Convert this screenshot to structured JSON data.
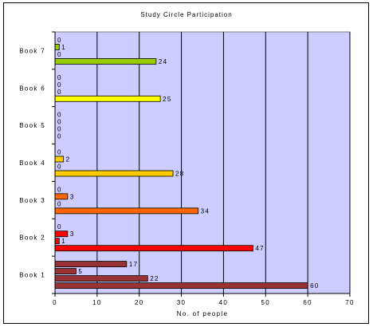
{
  "chart_data": {
    "type": "bar",
    "orientation": "horizontal",
    "title": "Study Circle Participation",
    "xlabel": "No. of people",
    "ylabel": "",
    "xlim": [
      0,
      70
    ],
    "xticks": [
      0,
      10,
      20,
      30,
      40,
      50,
      60,
      70
    ],
    "grid": "vertical",
    "legend": "none",
    "plot_background": "#ccccff",
    "categories": [
      "Book 7",
      "Book 6",
      "Book 5",
      "Book 4",
      "Book 3",
      "Book 2",
      "Book 1"
    ],
    "groups": [
      {
        "category": "Book 7",
        "color": "#99cc00",
        "values": [
          0,
          1,
          0,
          24
        ]
      },
      {
        "category": "Book 6",
        "color": "#ffff00",
        "values": [
          0,
          0,
          0,
          25
        ]
      },
      {
        "category": "Book 5",
        "color": "#ffcc00",
        "values": [
          0,
          0,
          0,
          0
        ]
      },
      {
        "category": "Book 4",
        "color": "#ffcc00",
        "values": [
          0,
          2,
          0,
          28
        ]
      },
      {
        "category": "Book 3",
        "color": "#ff6600",
        "values": [
          0,
          3,
          0,
          34
        ]
      },
      {
        "category": "Book 2",
        "color": "#ff0000",
        "values": [
          0,
          3,
          1,
          47
        ]
      },
      {
        "category": "Book 1",
        "color": "#993333",
        "values": [
          17,
          5,
          22,
          60
        ]
      }
    ]
  }
}
